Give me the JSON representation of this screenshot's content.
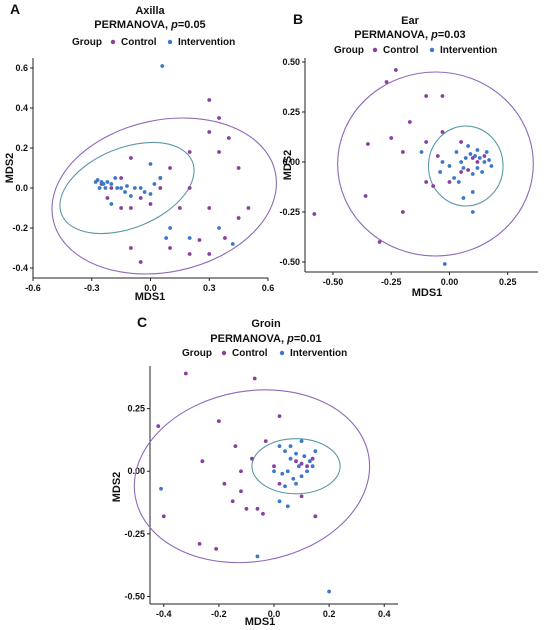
{
  "colors": {
    "control": "#8a3fa0",
    "intervention": "#3a78c9",
    "control_ellipse": "#8e6ab8",
    "intervention_ellipse": "#5c98a8",
    "axis": "#222222"
  },
  "chart_data": [
    {
      "id": "A",
      "type": "scatter",
      "panel_label": "A",
      "title": "Axilla",
      "subtitle_prefix": "PERMANOVA, ",
      "subtitle_p": "p",
      "subtitle_value": "=0.05",
      "legend": {
        "title": "Group",
        "entries": [
          "Control",
          "Intervention"
        ]
      },
      "xlabel": "MDS1",
      "ylabel": "MDS2",
      "xlim": [
        -0.6,
        0.6
      ],
      "ylim": [
        -0.45,
        0.65
      ],
      "xticks": [
        -0.6,
        -0.3,
        0.0,
        0.3,
        0.6
      ],
      "xtick_labels": [
        "-0.6",
        "-0.3",
        "0.0",
        "0.3",
        "0.6"
      ],
      "yticks": [
        -0.4,
        -0.2,
        0.0,
        0.2,
        0.4,
        0.6
      ],
      "ytick_labels": [
        "-0.4",
        "-0.2",
        "0.0",
        "0.2",
        "0.4",
        "0.6"
      ],
      "series": [
        {
          "name": "Control",
          "points": [
            [
              0.3,
              0.44
            ],
            [
              0.35,
              0.35
            ],
            [
              0.3,
              0.28
            ],
            [
              0.4,
              0.25
            ],
            [
              0.45,
              0.1
            ],
            [
              0.2,
              0.18
            ],
            [
              0.35,
              0.18
            ],
            [
              0.1,
              0.1
            ],
            [
              0.05,
              0.05
            ],
            [
              0.15,
              -0.1
            ],
            [
              0.2,
              0.0
            ],
            [
              0.3,
              -0.1
            ],
            [
              0.5,
              -0.1
            ],
            [
              0.45,
              -0.15
            ],
            [
              0.38,
              -0.25
            ],
            [
              0.3,
              -0.33
            ],
            [
              0.2,
              -0.33
            ],
            [
              0.1,
              -0.3
            ],
            [
              -0.1,
              -0.3
            ],
            [
              -0.05,
              -0.37
            ],
            [
              -0.1,
              0.15
            ],
            [
              -0.15,
              0.05
            ],
            [
              -0.2,
              0.0
            ],
            [
              -0.25,
              0.02
            ],
            [
              -0.22,
              -0.05
            ],
            [
              -0.15,
              -0.1
            ],
            [
              -0.05,
              -0.05
            ],
            [
              0.0,
              -0.08
            ],
            [
              0.05,
              0.0
            ],
            [
              -0.1,
              -0.1
            ],
            [
              0.25,
              -0.26
            ]
          ]
        },
        {
          "name": "Intervention",
          "points": [
            [
              0.06,
              0.61
            ],
            [
              -0.27,
              0.04
            ],
            [
              -0.25,
              0.03
            ],
            [
              -0.24,
              0.02
            ],
            [
              -0.23,
              0.0
            ],
            [
              -0.22,
              0.03
            ],
            [
              -0.2,
              0.02
            ],
            [
              -0.18,
              0.05
            ],
            [
              -0.17,
              0.0
            ],
            [
              -0.15,
              0.0
            ],
            [
              -0.13,
              -0.02
            ],
            [
              -0.12,
              0.01
            ],
            [
              -0.1,
              -0.04
            ],
            [
              -0.08,
              0.0
            ],
            [
              -0.05,
              0.0
            ],
            [
              -0.03,
              -0.02
            ],
            [
              0.0,
              -0.03
            ],
            [
              0.02,
              0.02
            ],
            [
              -0.28,
              0.03
            ],
            [
              -0.26,
              0.0
            ],
            [
              0.1,
              -0.2
            ],
            [
              0.08,
              -0.25
            ],
            [
              0.2,
              -0.25
            ],
            [
              0.35,
              -0.2
            ],
            [
              0.42,
              -0.28
            ],
            [
              0.0,
              0.12
            ],
            [
              0.05,
              0.05
            ],
            [
              -0.2,
              -0.08
            ]
          ]
        }
      ],
      "ellipses": [
        {
          "group": "Control",
          "cx": 0.07,
          "cy": -0.04,
          "rx": 0.58,
          "ry": 0.38,
          "angle": -12
        },
        {
          "group": "Intervention",
          "cx": -0.12,
          "cy": 0.0,
          "rx": 0.36,
          "ry": 0.2,
          "angle": -22
        }
      ]
    },
    {
      "id": "B",
      "type": "scatter",
      "panel_label": "B",
      "title": "Ear",
      "subtitle_prefix": "PERMANOVA, ",
      "subtitle_p": "p",
      "subtitle_value": "=0.03",
      "legend": {
        "title": "Group",
        "entries": [
          "Control",
          "Intervention"
        ]
      },
      "xlabel": "MDS1",
      "ylabel": "MDS2",
      "xlim": [
        -0.62,
        0.38
      ],
      "ylim": [
        -0.55,
        0.52
      ],
      "xticks": [
        -0.5,
        -0.25,
        0.0,
        0.25
      ],
      "xtick_labels": [
        "-0.50",
        "-0.25",
        "0.00",
        "0.25"
      ],
      "yticks": [
        -0.5,
        -0.25,
        0.0,
        0.25,
        0.5
      ],
      "ytick_labels": [
        "-0.50",
        "-0.25",
        "0.00",
        "0.25",
        "0.50"
      ],
      "series": [
        {
          "name": "Control",
          "points": [
            [
              -0.23,
              0.46
            ],
            [
              -0.27,
              0.4
            ],
            [
              -0.1,
              0.33
            ],
            [
              -0.03,
              0.33
            ],
            [
              -0.17,
              0.2
            ],
            [
              -0.35,
              0.09
            ],
            [
              -0.25,
              0.12
            ],
            [
              -0.1,
              0.1
            ],
            [
              -0.03,
              0.15
            ],
            [
              0.05,
              0.1
            ],
            [
              -0.2,
              0.05
            ],
            [
              -0.05,
              0.03
            ],
            [
              0.0,
              -0.1
            ],
            [
              0.05,
              -0.05
            ],
            [
              -0.07,
              -0.12
            ],
            [
              -0.1,
              -0.1
            ],
            [
              -0.36,
              -0.17
            ],
            [
              -0.2,
              -0.25
            ],
            [
              -0.3,
              -0.4
            ],
            [
              -0.58,
              -0.26
            ],
            [
              0.1,
              0.02
            ],
            [
              0.12,
              0.0
            ],
            [
              0.15,
              0.03
            ],
            [
              0.08,
              -0.04
            ]
          ]
        },
        {
          "name": "Intervention",
          "points": [
            [
              -0.02,
              -0.51
            ],
            [
              0.1,
              -0.25
            ],
            [
              0.05,
              0.0
            ],
            [
              0.07,
              0.02
            ],
            [
              0.09,
              0.04
            ],
            [
              0.11,
              0.03
            ],
            [
              0.13,
              0.02
            ],
            [
              0.15,
              0.0
            ],
            [
              0.17,
              0.01
            ],
            [
              0.12,
              -0.03
            ],
            [
              0.1,
              -0.06
            ],
            [
              0.14,
              -0.05
            ],
            [
              0.06,
              -0.03
            ],
            [
              0.03,
              0.05
            ],
            [
              0.0,
              -0.02
            ],
            [
              -0.03,
              0.0
            ],
            [
              0.08,
              0.08
            ],
            [
              0.12,
              0.06
            ],
            [
              0.16,
              0.05
            ],
            [
              0.18,
              -0.02
            ],
            [
              0.04,
              -0.1
            ],
            [
              0.02,
              -0.08
            ],
            [
              0.1,
              -0.15
            ],
            [
              0.06,
              -0.18
            ],
            [
              -0.04,
              -0.05
            ],
            [
              -0.12,
              0.05
            ]
          ]
        }
      ],
      "ellipses": [
        {
          "group": "Control",
          "cx": -0.06,
          "cy": -0.01,
          "rx": 0.42,
          "ry": 0.46,
          "angle": 0
        },
        {
          "group": "Intervention",
          "cx": 0.07,
          "cy": -0.02,
          "rx": 0.16,
          "ry": 0.2,
          "angle": 0
        }
      ]
    },
    {
      "id": "C",
      "type": "scatter",
      "panel_label": "C",
      "title": "Groin",
      "subtitle_prefix": "PERMANOVA, ",
      "subtitle_p": "p",
      "subtitle_value": "=0.01",
      "legend": {
        "title": "Group",
        "entries": [
          "Control",
          "Intervention"
        ]
      },
      "xlabel": "MDS1",
      "ylabel": "MDS2",
      "xlim": [
        -0.45,
        0.45
      ],
      "ylim": [
        -0.53,
        0.42
      ],
      "xticks": [
        -0.4,
        -0.2,
        0.0,
        0.2,
        0.4
      ],
      "xtick_labels": [
        "-0.4",
        "-0.2",
        "0.0",
        "0.2",
        "0.4"
      ],
      "yticks": [
        -0.5,
        -0.25,
        0.0,
        0.25
      ],
      "ytick_labels": [
        "-0.50",
        "-0.25",
        "0.00",
        "0.25"
      ],
      "series": [
        {
          "name": "Control",
          "points": [
            [
              -0.32,
              0.39
            ],
            [
              -0.07,
              0.37
            ],
            [
              -0.42,
              0.18
            ],
            [
              -0.2,
              0.2
            ],
            [
              0.02,
              0.22
            ],
            [
              -0.26,
              0.04
            ],
            [
              -0.14,
              0.1
            ],
            [
              -0.12,
              0.0
            ],
            [
              -0.08,
              0.05
            ],
            [
              -0.18,
              -0.05
            ],
            [
              -0.12,
              -0.08
            ],
            [
              -0.15,
              -0.12
            ],
            [
              -0.1,
              -0.15
            ],
            [
              -0.06,
              -0.15
            ],
            [
              -0.04,
              -0.17
            ],
            [
              -0.4,
              -0.18
            ],
            [
              -0.27,
              -0.29
            ],
            [
              -0.21,
              -0.31
            ],
            [
              -0.03,
              0.12
            ],
            [
              0.0,
              0.02
            ],
            [
              0.02,
              -0.05
            ],
            [
              0.08,
              0.04
            ],
            [
              0.1,
              0.03
            ],
            [
              0.12,
              0.02
            ],
            [
              0.14,
              0.05
            ],
            [
              0.1,
              -0.1
            ],
            [
              0.15,
              -0.18
            ]
          ]
        },
        {
          "name": "Intervention",
          "points": [
            [
              -0.06,
              -0.34
            ],
            [
              0.2,
              -0.48
            ],
            [
              -0.41,
              -0.07
            ],
            [
              0.02,
              0.1
            ],
            [
              0.04,
              0.08
            ],
            [
              0.06,
              0.05
            ],
            [
              0.08,
              0.07
            ],
            [
              0.09,
              0.02
            ],
            [
              0.11,
              0.06
            ],
            [
              0.13,
              0.04
            ],
            [
              0.14,
              0.02
            ],
            [
              0.12,
              0.0
            ],
            [
              0.1,
              -0.02
            ],
            [
              0.07,
              -0.03
            ],
            [
              0.05,
              0.0
            ],
            [
              0.03,
              -0.01
            ],
            [
              0.0,
              0.0
            ],
            [
              0.06,
              0.1
            ],
            [
              0.1,
              0.12
            ],
            [
              0.15,
              0.08
            ],
            [
              0.04,
              -0.06
            ],
            [
              0.08,
              -0.05
            ],
            [
              0.02,
              -0.12
            ],
            [
              0.05,
              -0.14
            ]
          ]
        }
      ],
      "ellipses": [
        {
          "group": "Control",
          "cx": -0.08,
          "cy": -0.02,
          "rx": 0.43,
          "ry": 0.34,
          "angle": -10
        },
        {
          "group": "Intervention",
          "cx": 0.08,
          "cy": 0.02,
          "rx": 0.16,
          "ry": 0.11,
          "angle": 0
        }
      ]
    }
  ]
}
